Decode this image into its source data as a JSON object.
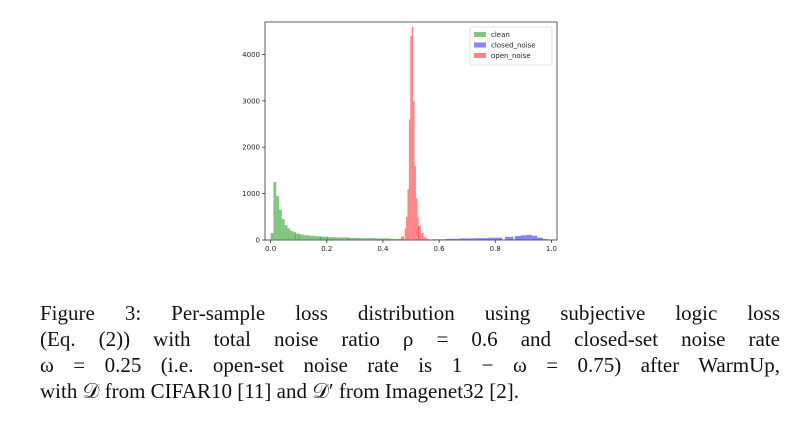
{
  "chart_data": {
    "type": "histogram",
    "title": "",
    "xlabel": "",
    "ylabel": "",
    "xlim": [
      -0.02,
      1.02
    ],
    "ylim": [
      0,
      4700
    ],
    "xticks": [
      "0.0",
      "0.2",
      "0.4",
      "0.6",
      "0.8",
      "1.0"
    ],
    "yticks": [
      "0",
      "1000",
      "2000",
      "3000",
      "4000"
    ],
    "legend_position": "top-right",
    "series": [
      {
        "name": "clean",
        "color": "#2ca02c",
        "x": [
          0.005,
          0.015,
          0.025,
          0.035,
          0.045,
          0.055,
          0.065,
          0.075,
          0.085,
          0.095,
          0.11,
          0.13,
          0.15,
          0.17,
          0.19,
          0.22,
          0.26,
          0.3,
          0.35,
          0.4,
          0.45
        ],
        "values": [
          150,
          1250,
          950,
          650,
          450,
          320,
          250,
          200,
          170,
          140,
          120,
          100,
          90,
          80,
          70,
          60,
          55,
          45,
          40,
          35,
          25
        ]
      },
      {
        "name": "closed_noise",
        "color": "#3333ff",
        "x": [
          0.55,
          0.6,
          0.65,
          0.7,
          0.75,
          0.8,
          0.85,
          0.88,
          0.9,
          0.92,
          0.94,
          0.96,
          0.98
        ],
        "values": [
          10,
          15,
          25,
          35,
          40,
          50,
          70,
          85,
          100,
          110,
          90,
          50,
          20
        ]
      },
      {
        "name": "open_noise",
        "color": "#ff3333",
        "x": [
          0.46,
          0.47,
          0.48,
          0.485,
          0.49,
          0.495,
          0.5,
          0.505,
          0.51,
          0.515,
          0.52,
          0.525,
          0.53,
          0.54,
          0.55,
          0.56
        ],
        "values": [
          20,
          80,
          250,
          500,
          1100,
          2600,
          4400,
          4600,
          3000,
          1600,
          900,
          500,
          300,
          150,
          60,
          20
        ]
      }
    ]
  },
  "caption": {
    "lines": [
      "Figure 3: Per-sample loss distribution using subjective logic loss",
      "(Eq. (2)) with total noise ratio ρ = 0.6 and closed-set noise rate",
      "ω = 0.25 (i.e. open-set noise rate is 1 − ω = 0.75) after WarmUp,",
      "with 𝒟 from CIFAR10 [11] and 𝒟′ from Imagenet32 [2]."
    ]
  }
}
